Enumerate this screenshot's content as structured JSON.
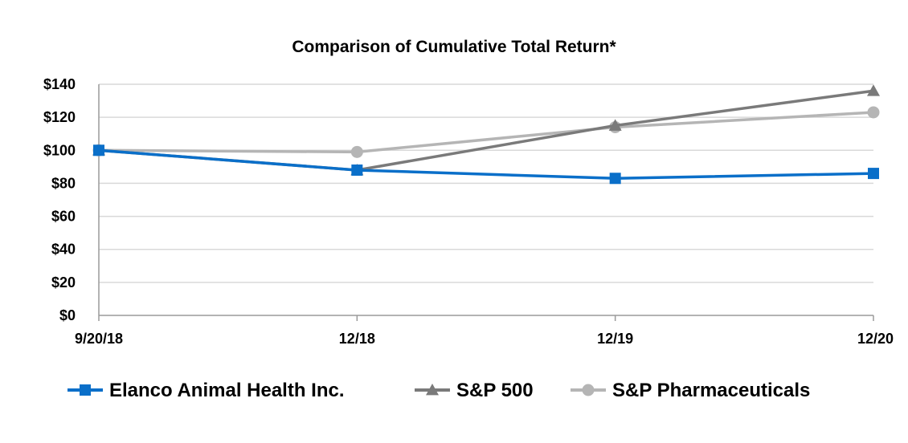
{
  "chart_data": {
    "type": "line",
    "title": "Comparison of Cumulative Total Return*",
    "xlabel": "",
    "ylabel": "",
    "categories": [
      "9/20/18",
      "12/18",
      "12/19",
      "12/20"
    ],
    "ylim": [
      0,
      140
    ],
    "yticks": [
      0,
      20,
      40,
      60,
      80,
      100,
      120,
      140
    ],
    "ytick_labels": [
      "$0",
      "$20",
      "$40",
      "$60",
      "$80",
      "$100",
      "$120",
      "$140"
    ],
    "grid": true,
    "legend_position": "bottom",
    "series": [
      {
        "name": "Elanco Animal Health Inc.",
        "values": [
          100,
          88,
          83,
          86
        ],
        "color": "#0a6fc9",
        "marker": "square"
      },
      {
        "name": "S&P 500",
        "values": [
          100,
          88,
          115,
          136
        ],
        "color": "#7a7a7a",
        "marker": "triangle"
      },
      {
        "name": "S&P Pharmaceuticals",
        "values": [
          100,
          99,
          114,
          123
        ],
        "color": "#b5b5b5",
        "marker": "circle"
      }
    ]
  }
}
